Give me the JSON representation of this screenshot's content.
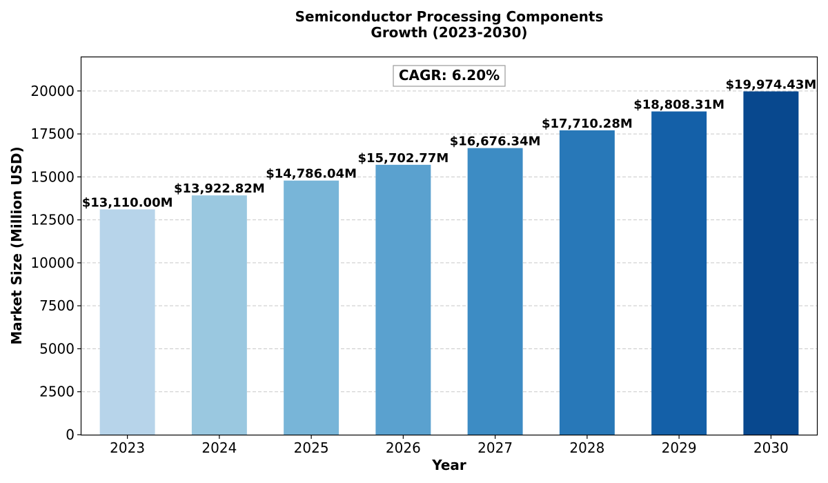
{
  "chart_data": {
    "type": "bar",
    "title_line1": "Semiconductor Processing Components",
    "title_line2": "Growth (2023-2030)",
    "xlabel": "Year",
    "ylabel": "Market Size (Million USD)",
    "categories": [
      "2023",
      "2024",
      "2025",
      "2026",
      "2027",
      "2028",
      "2029",
      "2030"
    ],
    "values": [
      13110.0,
      13922.82,
      14786.04,
      15702.77,
      16676.34,
      17710.28,
      18808.31,
      19974.43
    ],
    "value_labels": [
      "$13,110.00M",
      "$13,922.82M",
      "$14,786.04M",
      "$15,702.77M",
      "$16,676.34M",
      "$17,710.28M",
      "$18,808.31M",
      "$19,974.43M"
    ],
    "bar_colors": [
      "#b7d4ea",
      "#9ac8e0",
      "#78b5d8",
      "#5aa1cf",
      "#3d8cc4",
      "#2878b8",
      "#1460a8",
      "#08488e"
    ],
    "ylim": [
      0,
      22000
    ],
    "yticks": [
      0,
      2500,
      5000,
      7500,
      10000,
      12500,
      15000,
      17500,
      20000
    ],
    "grid": true,
    "grid_axis": "y",
    "annotation": "CAGR: 6.20%"
  }
}
